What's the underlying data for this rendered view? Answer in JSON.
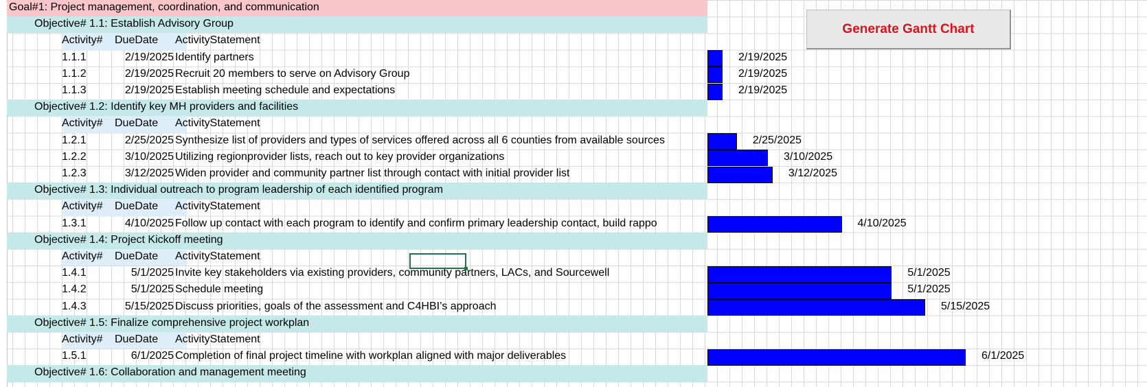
{
  "sheet": {
    "goal": "Goal#1: Project management, coordination, and communication",
    "header": {
      "activity": "Activity#",
      "duedate": "DueDate",
      "statement": "ActivityStatement"
    },
    "button_label": "Generate Gantt Chart",
    "objectives": [
      {
        "title": "Objective# 1.1: Establish Advisory Group",
        "activities": [
          {
            "num": "1.1.1",
            "due": "2/19/2025",
            "statement": "Identify partners",
            "bar_label": "2/19/2025"
          },
          {
            "num": "1.1.2",
            "due": "2/19/2025",
            "statement": "Recruit 20 members to serve on Advisory Group",
            "bar_label": "2/19/2025"
          },
          {
            "num": "1.1.3",
            "due": "2/19/2025",
            "statement": "Establish meeting schedule and expectations",
            "bar_label": "2/19/2025"
          }
        ]
      },
      {
        "title": "Objective# 1.2: Identify key MH providers and facilities",
        "activities": [
          {
            "num": "1.2.1",
            "due": "2/25/2025",
            "statement": "Synthesize list of providers and types of services offered across all 6 counties from available sources",
            "bar_label": "2/25/2025"
          },
          {
            "num": "1.2.2",
            "due": "3/10/2025",
            "statement": "Utilizing regionprovider lists, reach out to key provider organizations",
            "bar_label": "3/10/2025"
          },
          {
            "num": "1.2.3",
            "due": "3/12/2025",
            "statement": "Widen provider and community partner list through contact with initial provider list",
            "bar_label": "3/12/2025"
          }
        ]
      },
      {
        "title": "Objective# 1.3: Individual outreach to program leadership of each identified program",
        "activities": [
          {
            "num": "1.3.1",
            "due": "4/10/2025",
            "statement": "Follow up contact with each program to identify and confirm primary leadership contact, build rappo",
            "bar_label": "4/10/2025"
          }
        ]
      },
      {
        "title": "Objective# 1.4: Project Kickoff meeting",
        "activities": [
          {
            "num": "1.4.1",
            "due": "5/1/2025",
            "statement": "Invite key stakeholders via existing providers, community partners, LACs, and Sourcewell",
            "bar_label": "5/1/2025"
          },
          {
            "num": "1.4.2",
            "due": "5/1/2025",
            "statement": "Schedule meeting",
            "bar_label": "5/1/2025"
          },
          {
            "num": "1.4.3",
            "due": "5/15/2025",
            "statement": "Discuss priorities, goals of the assessment and C4HBI’s approach",
            "bar_label": "5/15/2025"
          }
        ]
      },
      {
        "title": "Objective# 1.5: Finalize comprehensive project workplan",
        "activities": [
          {
            "num": "1.5.1",
            "due": "6/1/2025",
            "statement": "Completion of final project timeline with workplan aligned with major deliverables",
            "bar_label": "6/1/2025"
          }
        ]
      },
      {
        "title": "Objective# 1.6: Collaboration and management meeting",
        "activities": []
      }
    ]
  },
  "colors": {
    "goal_band": "#f9c7cb",
    "objective_band": "#c4e9e8",
    "bar": "#0000ff",
    "button_text": "#d9141c",
    "selection": "#217346"
  },
  "chart_data": {
    "type": "bar",
    "orientation": "horizontal",
    "start_date": "2/19/2025",
    "categories": [
      "1.1.1",
      "1.1.2",
      "1.1.3",
      "1.2.1",
      "1.2.2",
      "1.2.3",
      "1.3.1",
      "1.4.1",
      "1.4.2",
      "1.4.3",
      "1.5.1"
    ],
    "end_dates": [
      "2/19/2025",
      "2/19/2025",
      "2/19/2025",
      "2/25/2025",
      "3/10/2025",
      "3/12/2025",
      "4/10/2025",
      "5/1/2025",
      "5/1/2025",
      "5/15/2025",
      "6/1/2025"
    ],
    "xlabel": "",
    "ylabel": "",
    "grid": true,
    "legend": "none"
  }
}
